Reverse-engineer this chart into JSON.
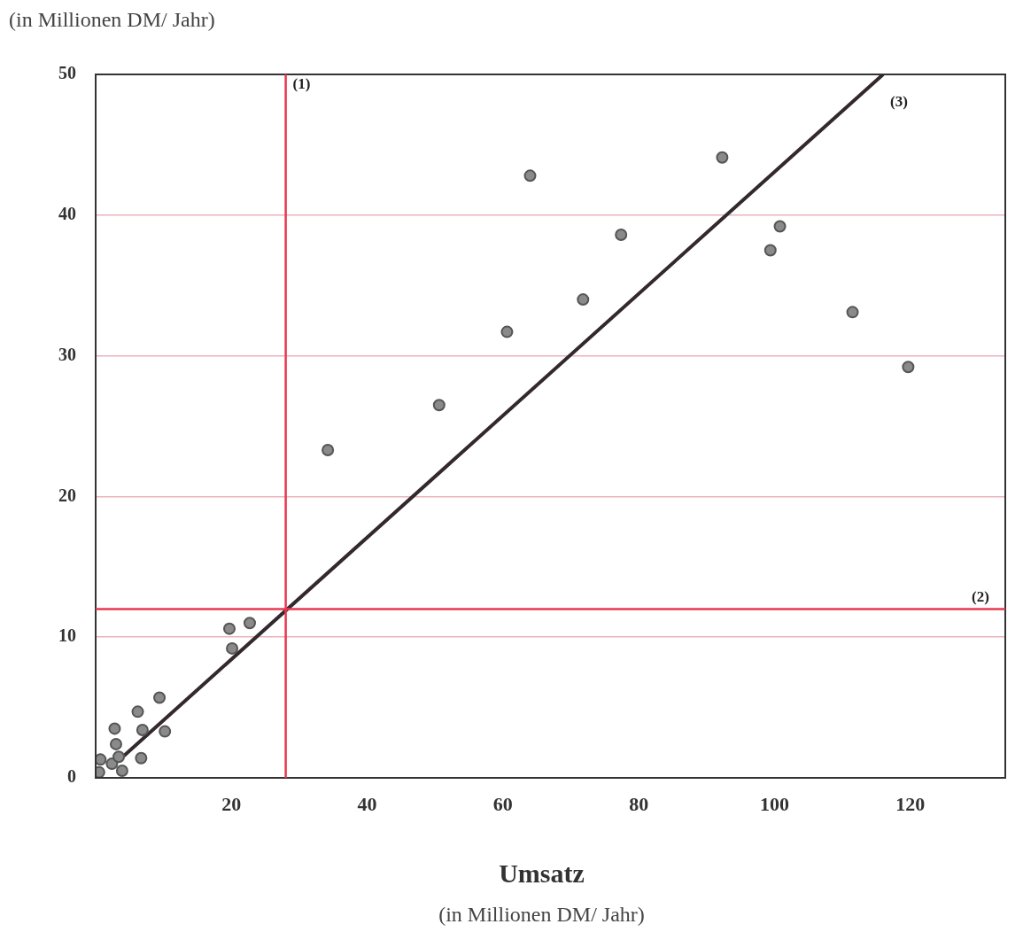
{
  "chart_data": {
    "type": "scatter",
    "ylabel": "(in Millionen DM/ Jahr)",
    "xlabel": "Umsatz",
    "annotations": [
      "(in Millionen DM/ Jahr)",
      {
        "text": "(1)",
        "x": 28,
        "y": 48.5
      },
      {
        "text": "(2)",
        "x": 128,
        "y": 12
      }
    ],
    "xlim": [
      0,
      134
    ],
    "ylim": [
      0,
      50
    ],
    "xticks": [
      20,
      40,
      60,
      80,
      100,
      120
    ],
    "yticks": [
      0,
      10,
      20,
      30,
      40,
      50
    ],
    "grid": "y",
    "marker": "circle",
    "legend": false,
    "series": [
      {
        "color": "#8a8a8a",
        "x": [
          34.2,
          50.6,
          60.6,
          64,
          71.8,
          77.4,
          92.3,
          99.4,
          100.8,
          111.5,
          119.7,
          19.7,
          22.7,
          20.1,
          9.4,
          6.2,
          6.9,
          10.2,
          2.8,
          3.0,
          6.7,
          2.4,
          0.7,
          0.5,
          3.9,
          3.4
        ],
        "values": [
          23.3,
          26.5,
          31.7,
          42.8,
          34.0,
          38.6,
          44.1,
          37.5,
          39.2,
          33.1,
          29.2,
          10.6,
          11.0,
          9.2,
          5.7,
          4.7,
          3.4,
          3.3,
          3.5,
          2.4,
          1.4,
          1.0,
          1.3,
          0.4,
          0.5,
          1.5
        ]
      },
      {
        "type": "line",
        "name": "(3)",
        "color": "#33282b",
        "marker": "none",
        "x": [
          4,
          116
        ],
        "values": [
          1.5,
          50
        ]
      }
    ],
    "ref_lines": [
      {
        "axis": "x",
        "value": 28,
        "color": "#e8384f"
      },
      {
        "axis": "y",
        "value": 12,
        "color": "#e8384f"
      }
    ]
  }
}
